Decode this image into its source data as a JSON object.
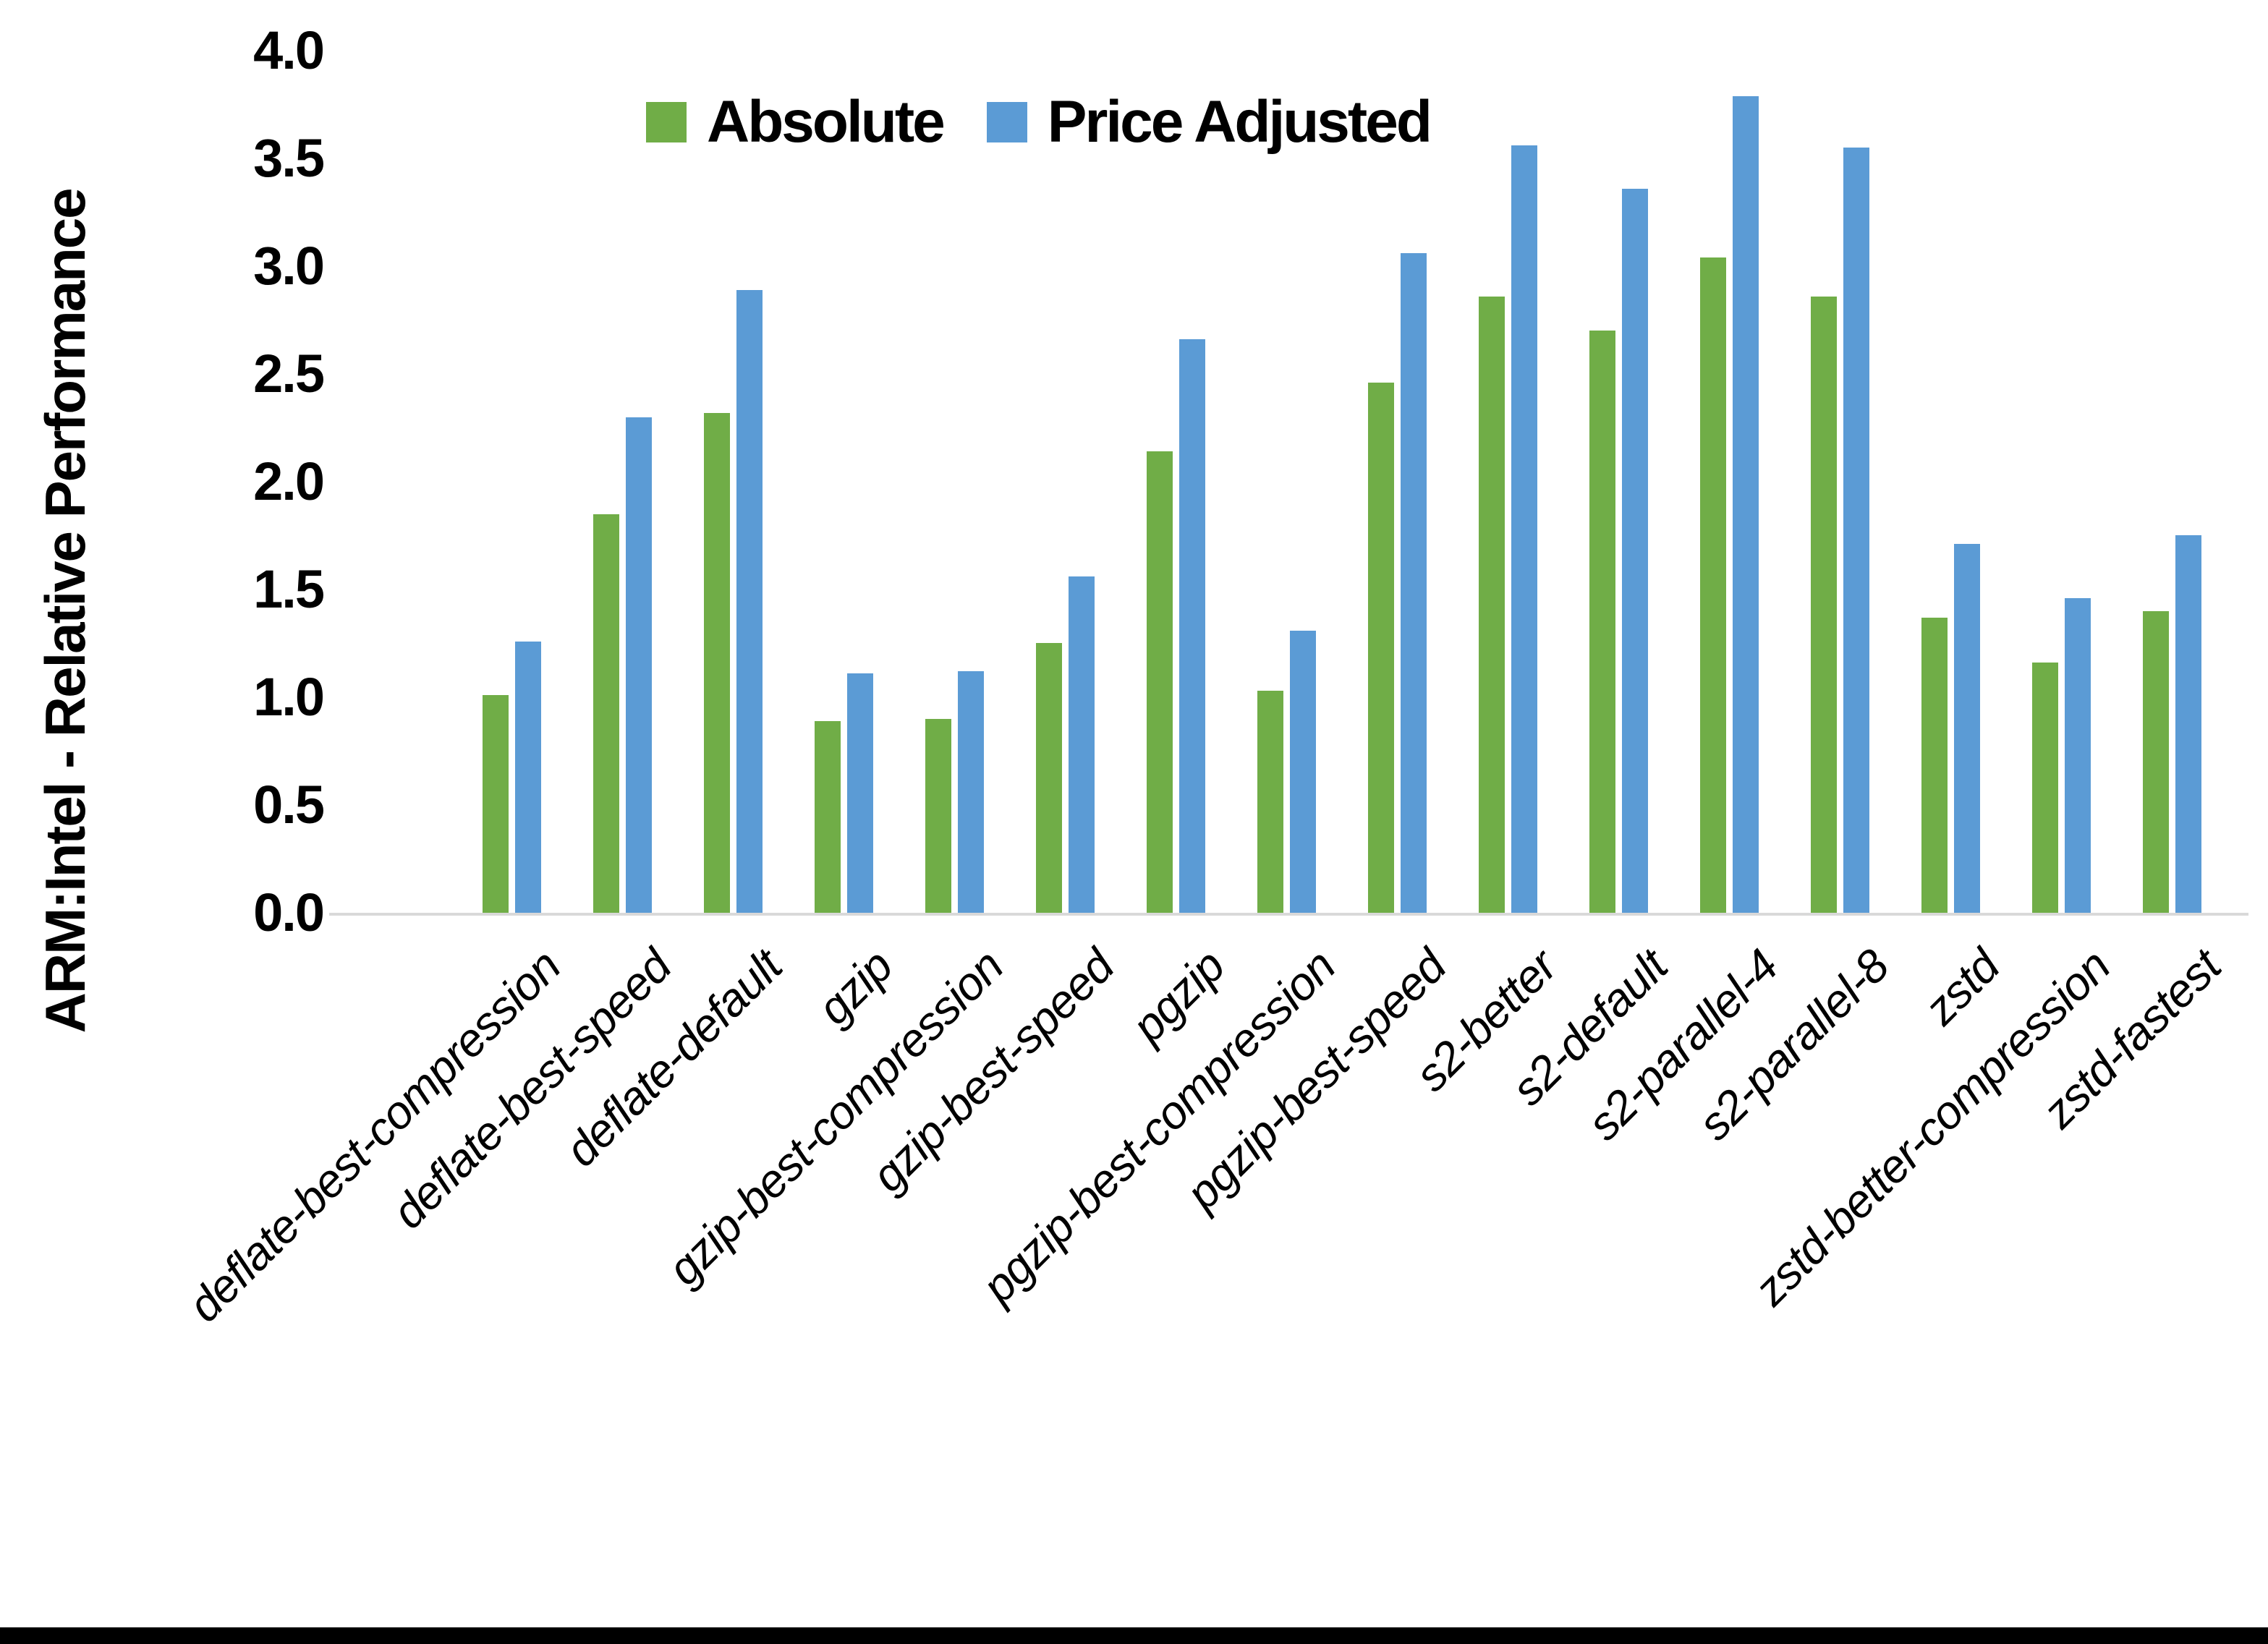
{
  "figure": {
    "y_axis_title": "ARM:Intel - Relative Performance",
    "legend": [
      {
        "name": "Absolute",
        "color": "#70AD47"
      },
      {
        "name": "Price Adjusted",
        "color": "#5B9BD5"
      }
    ]
  },
  "chart_data": {
    "type": "bar",
    "title": "",
    "xlabel": "",
    "ylabel": "ARM:Intel - Relative Performance",
    "ylim": [
      0.0,
      4.0
    ],
    "ytick_labels": [
      "0.0",
      "0.5",
      "1.0",
      "1.5",
      "2.0",
      "2.5",
      "3.0",
      "3.5",
      "4.0"
    ],
    "grid": false,
    "legend_position": "top-center",
    "categories": [
      "deflate-best-compression",
      "deflate-best-speed",
      "deflate-default",
      "gzip",
      "gzip-best-compression",
      "gzip-best-speed",
      "pgzip",
      "pgzip-best-compression",
      "pgzip-best-speed",
      "s2-better",
      "s2-default",
      "s2-parallel-4",
      "s2-parallel-8",
      "zstd",
      "zstd-better-compression",
      "zstd-fastest"
    ],
    "series": [
      {
        "name": "Absolute",
        "color": "#70AD47",
        "values": [
          1.01,
          1.85,
          2.32,
          0.89,
          0.9,
          1.25,
          2.14,
          1.03,
          2.46,
          2.86,
          2.7,
          3.04,
          2.86,
          1.37,
          1.16,
          1.4
        ]
      },
      {
        "name": "Price Adjusted",
        "color": "#5B9BD5",
        "values": [
          1.26,
          2.3,
          2.89,
          1.11,
          1.12,
          1.56,
          2.66,
          1.31,
          3.06,
          3.56,
          3.36,
          3.79,
          3.55,
          1.71,
          1.46,
          1.75
        ]
      }
    ]
  }
}
